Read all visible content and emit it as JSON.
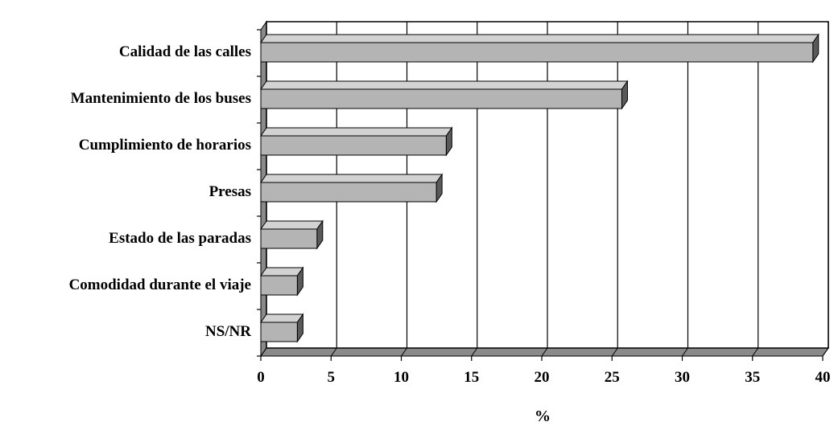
{
  "chart_data": {
    "type": "bar",
    "orientation": "horizontal",
    "style": "3d",
    "categories": [
      "Calidad de las calles",
      "Mantenimiento de los buses",
      "Cumplimiento de horarios",
      "Presas",
      "Estado de las paradas",
      "Comodidad durante el viaje",
      "NS/NR"
    ],
    "values": [
      39.3,
      25.7,
      13.2,
      12.5,
      4.0,
      2.6,
      2.6
    ],
    "xlabel": "%",
    "ylabel": "",
    "xlim": [
      0,
      40
    ],
    "xticks": [
      "0",
      "5",
      "10",
      "15",
      "20",
      "25",
      "30",
      "35",
      "40"
    ],
    "grid": "vertical",
    "colors": {
      "bar_front": "#b4b4b4",
      "bar_top": "#d2d2d2",
      "bar_side": "#5a5a5a",
      "grid": "#000000",
      "floor": "#8a8a8a"
    }
  }
}
